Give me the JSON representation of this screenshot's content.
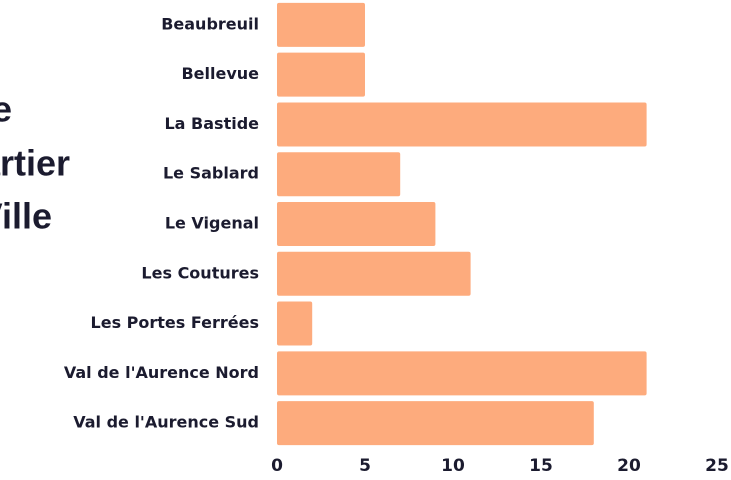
{
  "chart_data": {
    "type": "barh",
    "title_lines": [
      "e",
      "artier",
      "Ville"
    ],
    "categories": [
      "Beaubreuil",
      "Bellevue",
      "La Bastide",
      "Le Sablard",
      "Le Vigenal",
      "Les Coutures",
      "Les Portes Ferrées",
      "Val de l'Aurence Nord",
      "Val de l'Aurence Sud"
    ],
    "values": [
      5,
      5,
      21,
      7,
      9,
      11,
      2,
      21,
      18
    ],
    "color": "#fdab7d",
    "xlim": [
      0,
      25
    ],
    "xticks": [
      0,
      5,
      10,
      15,
      20,
      25
    ]
  }
}
